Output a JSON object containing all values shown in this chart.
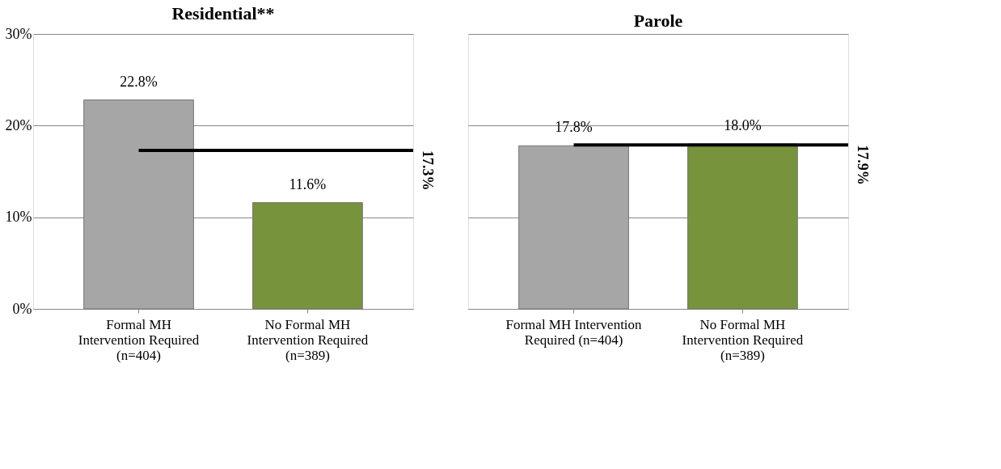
{
  "chart_data": [
    {
      "type": "bar",
      "title": "Residential**",
      "categories": [
        "Formal MH\nIntervention Required\n(n=404)",
        "No Formal MH\nIntervention Required\n(n=389)"
      ],
      "values": [
        22.8,
        11.6
      ],
      "colors": [
        "#a6a6a6",
        "#77933c"
      ],
      "value_labels": [
        "22.8%",
        "11.6%"
      ],
      "ylim": [
        0,
        30
      ],
      "yticks": [
        {
          "value": 0,
          "label": "0%"
        },
        {
          "value": 10,
          "label": "10%"
        },
        {
          "value": 20,
          "label": "20%"
        },
        {
          "value": 30,
          "label": "30%"
        }
      ],
      "grid": "y",
      "ref_lines": [
        {
          "axis": "y",
          "value": 17.3,
          "label": "17.3%",
          "color": "#000000"
        }
      ]
    },
    {
      "type": "bar",
      "title": "Parole",
      "categories": [
        "Formal MH Intervention\nRequired (n=404)",
        "No Formal MH\nIntervention Required\n(n=389)"
      ],
      "values": [
        17.8,
        18.0
      ],
      "colors": [
        "#a6a6a6",
        "#77933c"
      ],
      "value_labels": [
        "17.8%",
        "18.0%"
      ],
      "ylim": [
        0,
        30
      ],
      "yticks": [
        0,
        10,
        20,
        30
      ],
      "grid": "y",
      "tick_labels": "x",
      "ref_lines": [
        {
          "axis": "y",
          "value": 17.9,
          "label": "17.9%",
          "color": "#000000"
        }
      ]
    }
  ]
}
